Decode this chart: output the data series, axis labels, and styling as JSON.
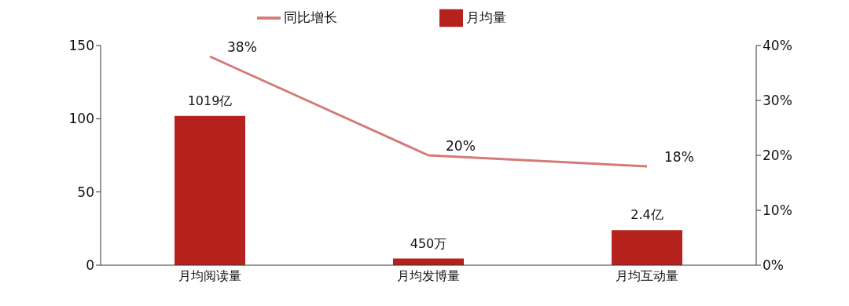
{
  "chart_data": {
    "type": "bar",
    "categories": [
      "月均阅读量",
      "月均发博量",
      "月均互动量"
    ],
    "series": [
      {
        "name": "月均量",
        "color": "#b5221e",
        "values": [
          101.9,
          4.5,
          24
        ]
      },
      {
        "name": "同比增长",
        "type": "line",
        "axis": "y2",
        "color": "#d47a78",
        "values": [
          38,
          20,
          18
        ],
        "value_labels": [
          "38%",
          "20%",
          "18%"
        ]
      }
    ],
    "annotations": [
      {
        "text": "1019亿",
        "x": "月均阅读量",
        "y": 101.9
      },
      {
        "text": "450万",
        "x": "月均发博量",
        "y": 4.5
      },
      {
        "text": "2.4亿",
        "x": "月均互动量",
        "y": 24
      }
    ],
    "ylim": [
      0,
      150
    ],
    "yticks": [
      0,
      50,
      100,
      150
    ],
    "y2lim": [
      0,
      40
    ],
    "y2ticks": [
      {
        "value": 0,
        "label": "0%"
      },
      {
        "value": 10,
        "label": "10%"
      },
      {
        "value": 20,
        "label": "20%"
      },
      {
        "value": 30,
        "label": "30%"
      },
      {
        "value": 40,
        "label": "40%"
      }
    ],
    "grid": false,
    "legend": "top",
    "marker": "none",
    "line_style": "solid"
  }
}
